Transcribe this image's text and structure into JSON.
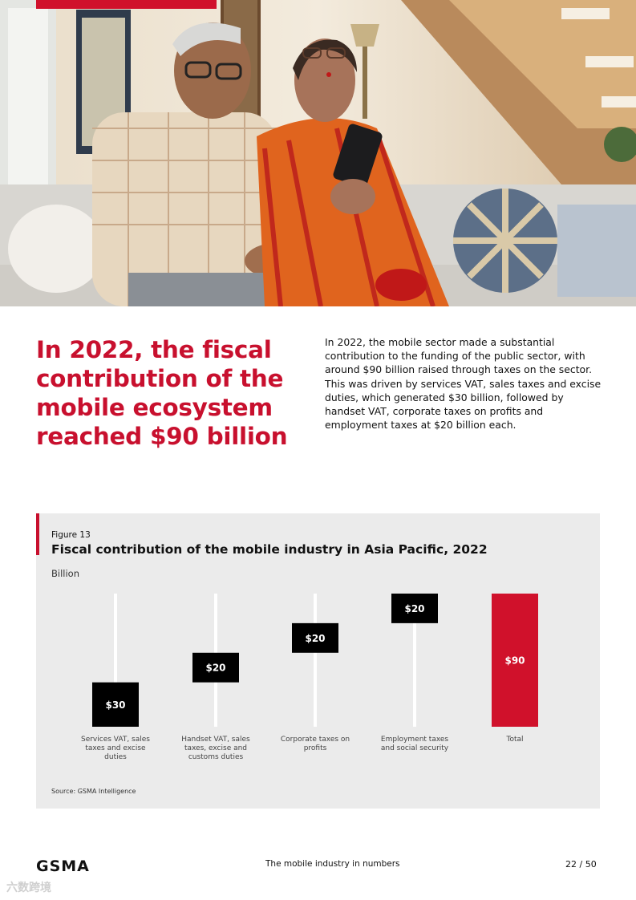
{
  "headline": "In 2022, the fiscal contribution of the mobile ecosystem reached $90 billion",
  "intro": "In 2022, the mobile sector made a substantial contribution to the funding of the public sector, with around $90 billion raised through taxes on the sector. This was driven by services VAT, sales taxes and excise duties, which generated $30 billion, followed by handset VAT, corporate taxes on profits and employment taxes at $20 billion each.",
  "figure": {
    "label": "Figure 13",
    "title": "Fiscal contribution of the mobile industry in Asia Pacific, 2022",
    "unit": "Billion",
    "source": "Source: GSMA Intelligence"
  },
  "chart_data": {
    "type": "bar",
    "subtype": "waterfall",
    "title": "Fiscal contribution of the mobile industry in Asia Pacific, 2022",
    "ylabel": "Billion",
    "categories": [
      "Services VAT, sales taxes and excise duties",
      "Handset VAT, sales taxes, excise and customs duties",
      "Corporate taxes on profits",
      "Employment taxes and social security",
      "Total"
    ],
    "values": [
      30,
      20,
      20,
      20,
      90
    ],
    "labels": [
      "$30",
      "$20",
      "$20",
      "$20",
      "$90"
    ],
    "is_total": [
      false,
      false,
      false,
      false,
      true
    ],
    "colors": {
      "step": "#000000",
      "total": "#d0112b"
    },
    "ylim": [
      0,
      90
    ],
    "grid": false,
    "legend": "none"
  },
  "footer": {
    "logo": "GSMA",
    "center": "The mobile industry in numbers",
    "page": "22 / 50"
  },
  "watermark": "六数跨境"
}
